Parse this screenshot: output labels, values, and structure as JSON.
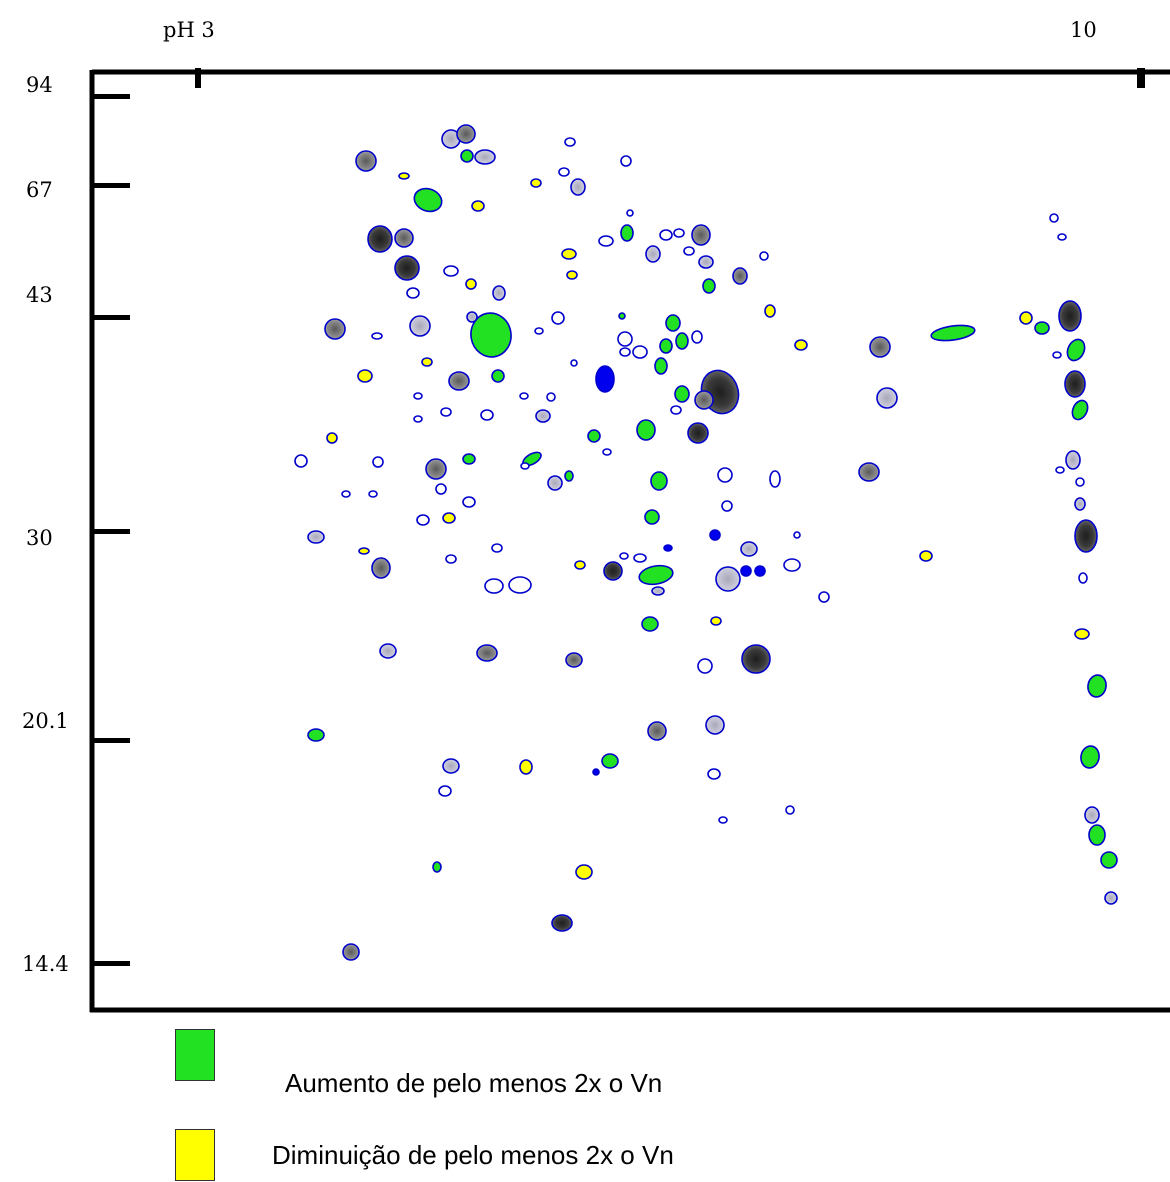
{
  "ph_axis": {
    "start_label": "pH 3",
    "end_label": "10"
  },
  "mw_axis": {
    "labels": [
      "94",
      "67",
      "43",
      "30",
      "20.1",
      "14.4"
    ]
  },
  "legend": [
    {
      "label": "Aumento de pelo menos 2x o Vn",
      "color": "#22e022"
    },
    {
      "label": "Diminuição de pelo menos 2x o Vn",
      "color": "#ffff00"
    }
  ],
  "colors": {
    "increase": "#22e022",
    "decrease": "#ffff00",
    "unchanged": "#c8c8e0",
    "exclusive": "#0000ee",
    "outline": "#0000cc",
    "axis": "#000000"
  }
}
